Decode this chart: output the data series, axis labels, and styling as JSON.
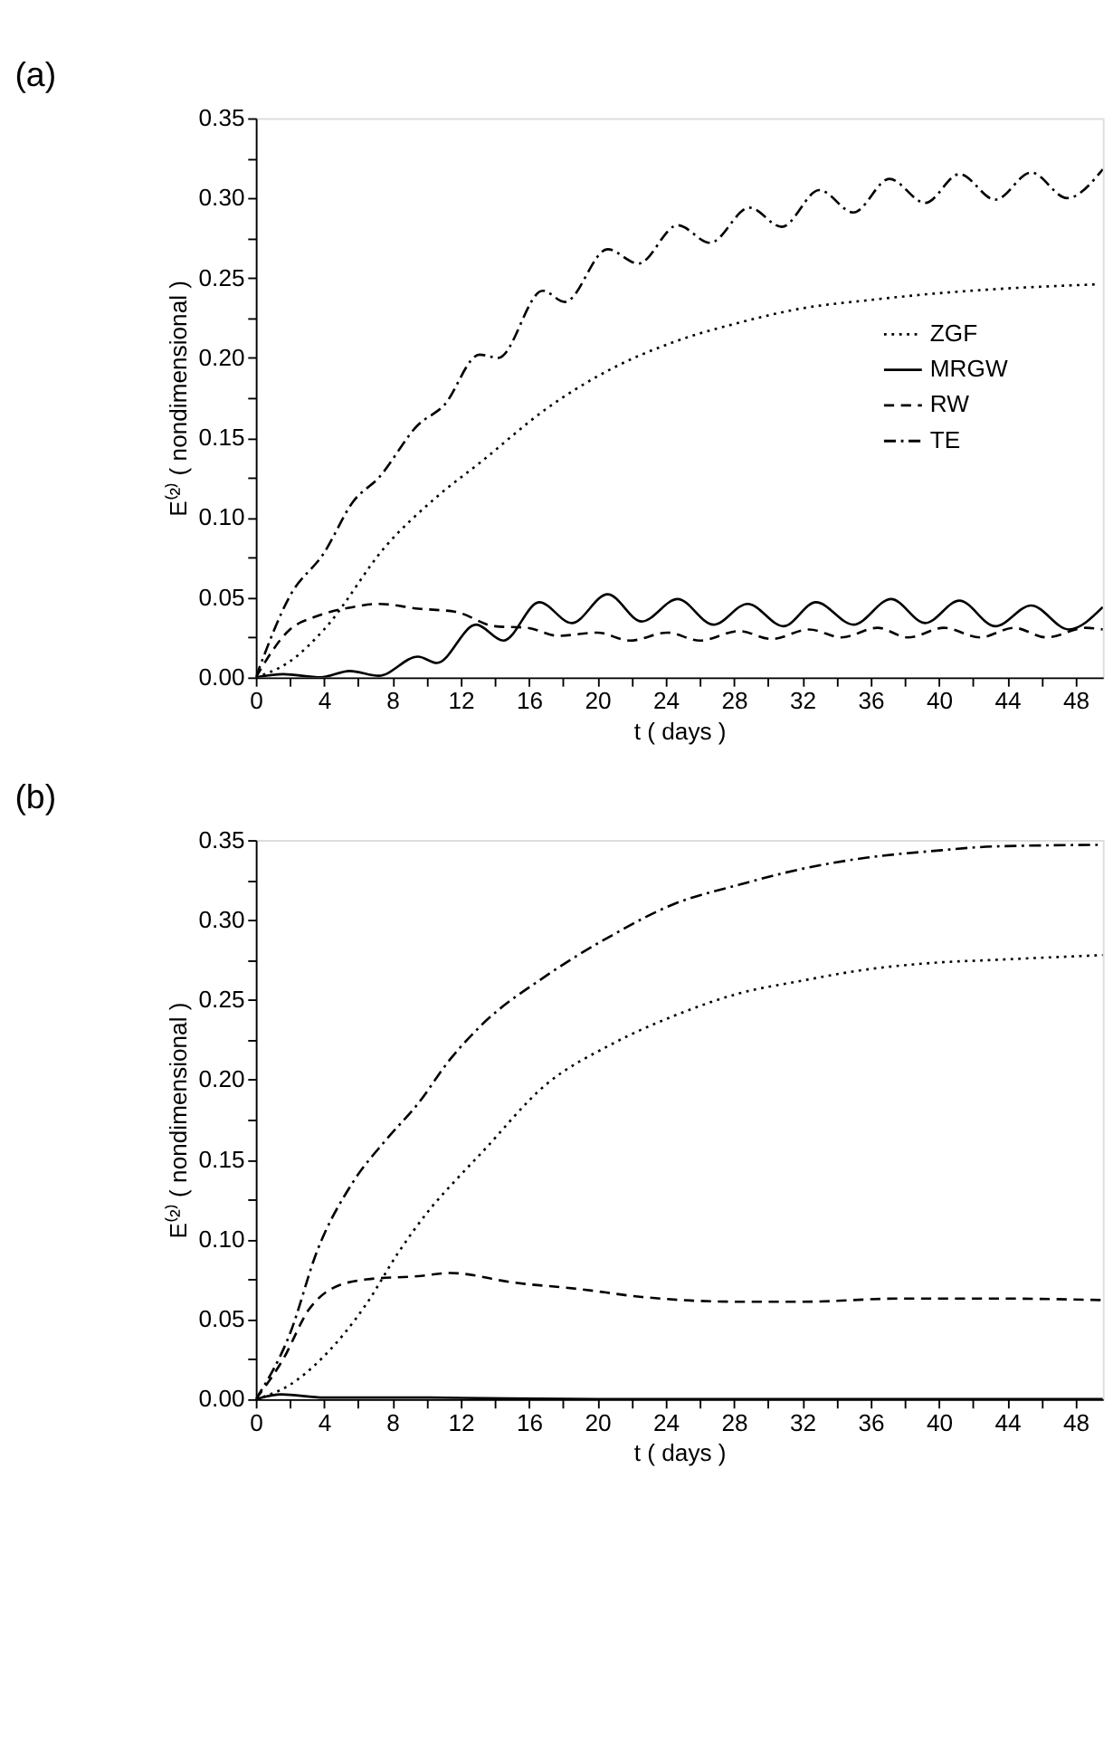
{
  "chart_data": [
    {
      "type": "line",
      "title": "(a)",
      "xlabel": "t ( days )",
      "ylabel": "E⁽²⁾ ( nondimensional )",
      "xlim": [
        0,
        49.6
      ],
      "ylim": [
        0,
        0.35
      ],
      "xticks": [
        0,
        {
          "value": 2,
          "label": null
        },
        4,
        {
          "value": 6,
          "label": null
        },
        8,
        {
          "value": 10,
          "label": null
        },
        12,
        {
          "value": 14,
          "label": null
        },
        16,
        {
          "value": 18,
          "label": null
        },
        20,
        {
          "value": 22,
          "label": null
        },
        24,
        {
          "value": 26,
          "label": null
        },
        28,
        {
          "value": 30,
          "label": null
        },
        32,
        {
          "value": 34,
          "label": null
        },
        36,
        {
          "value": 38,
          "label": null
        },
        40,
        {
          "value": 42,
          "label": null
        },
        44,
        {
          "value": 46,
          "label": null
        },
        48
      ],
      "yticks": [
        {
          "value": 0,
          "label": "0.00"
        },
        {
          "value": 0.025,
          "label": null
        },
        {
          "value": 0.05,
          "label": "0.05"
        },
        {
          "value": 0.075,
          "label": null
        },
        {
          "value": 0.1,
          "label": "0.10"
        },
        {
          "value": 0.125,
          "label": null
        },
        {
          "value": 0.15,
          "label": "0.15"
        },
        {
          "value": 0.175,
          "label": null
        },
        {
          "value": 0.2,
          "label": "0.20"
        },
        {
          "value": 0.225,
          "label": null
        },
        {
          "value": 0.25,
          "label": "0.25"
        },
        {
          "value": 0.275,
          "label": null
        },
        {
          "value": 0.3,
          "label": "0.30"
        },
        {
          "value": 0.325,
          "label": null
        },
        {
          "value": 0.35,
          "label": "0.35"
        }
      ],
      "grid": false,
      "legend": "right",
      "series": [
        {
          "name": "ZGF",
          "color": "#000000",
          "line_style": "dotted",
          "x": [
            0,
            2,
            4,
            7.6,
            10.6,
            13.2,
            17,
            20.8,
            24.5,
            28.3,
            32,
            35.8,
            39.5,
            43.3,
            49.3
          ],
          "values": [
            0,
            0.01,
            0.03,
            0.082,
            0.113,
            0.135,
            0.168,
            0.193,
            0.21,
            0.222,
            0.231,
            0.236,
            0.24,
            0.243,
            0.246
          ]
        },
        {
          "name": "MRGW",
          "color": "#000000",
          "line_style": "solid",
          "x": [
            0,
            1.6,
            3.8,
            5.5,
            7.2,
            9.5,
            10.6,
            12.9,
            14.5,
            16.6,
            18.5,
            20.6,
            22.6,
            24.7,
            26.8,
            28.8,
            30.9,
            32.8,
            35,
            37.2,
            39.2,
            41.2,
            43.3,
            45.4,
            47.6,
            49.6
          ],
          "values": [
            0,
            0.002,
            0,
            0.004,
            0.001,
            0.013,
            0.009,
            0.033,
            0.023,
            0.047,
            0.034,
            0.052,
            0.035,
            0.049,
            0.033,
            0.046,
            0.032,
            0.047,
            0.033,
            0.049,
            0.034,
            0.048,
            0.032,
            0.045,
            0.03,
            0.044
          ]
        },
        {
          "name": "RW",
          "color": "#000000",
          "line_style": "dashed",
          "x": [
            0,
            2,
            3.5,
            5.7,
            7.2,
            9.5,
            11.7,
            14,
            15.9,
            17.7,
            20,
            21.9,
            24.1,
            26,
            28.3,
            30.2,
            32.4,
            34.3,
            36.4,
            38.2,
            40.3,
            42.4,
            44.4,
            46.3,
            48.6,
            49.6
          ],
          "values": [
            0,
            0.03,
            0.038,
            0.044,
            0.046,
            0.043,
            0.041,
            0.032,
            0.031,
            0.026,
            0.028,
            0.023,
            0.028,
            0.023,
            0.029,
            0.024,
            0.03,
            0.025,
            0.031,
            0.025,
            0.031,
            0.025,
            0.031,
            0.025,
            0.031,
            0.03
          ]
        },
        {
          "name": "TE",
          "color": "#000000",
          "line_style": "dashdot",
          "x": [
            0,
            2,
            4,
            5.7,
            7.2,
            9.5,
            11,
            13.1,
            14.2,
            16.8,
            18.1,
            20.6,
            22.4,
            24.7,
            26.6,
            28.9,
            30.8,
            33,
            35,
            37.1,
            39.2,
            41.2,
            43.3,
            45.4,
            47.5,
            49.6
          ],
          "values": [
            0,
            0.051,
            0.078,
            0.11,
            0.125,
            0.158,
            0.17,
            0.202,
            0.2,
            0.242,
            0.235,
            0.268,
            0.259,
            0.283,
            0.272,
            0.294,
            0.282,
            0.305,
            0.291,
            0.312,
            0.297,
            0.315,
            0.299,
            0.316,
            0.3,
            0.318
          ]
        }
      ]
    },
    {
      "type": "line",
      "title": "(b)",
      "xlabel": "t ( days )",
      "ylabel": "E⁽²⁾ ( nondimensional )",
      "xlim": [
        0,
        49.6
      ],
      "ylim": [
        0,
        0.35
      ],
      "xticks": [
        0,
        {
          "value": 2,
          "label": null
        },
        4,
        {
          "value": 6,
          "label": null
        },
        8,
        {
          "value": 10,
          "label": null
        },
        12,
        {
          "value": 14,
          "label": null
        },
        16,
        {
          "value": 18,
          "label": null
        },
        20,
        {
          "value": 22,
          "label": null
        },
        24,
        {
          "value": 26,
          "label": null
        },
        28,
        {
          "value": 30,
          "label": null
        },
        32,
        {
          "value": 34,
          "label": null
        },
        36,
        {
          "value": 38,
          "label": null
        },
        40,
        {
          "value": 42,
          "label": null
        },
        44,
        {
          "value": 46,
          "label": null
        },
        48
      ],
      "yticks": [
        {
          "value": 0,
          "label": "0.00"
        },
        {
          "value": 0.025,
          "label": null
        },
        {
          "value": 0.05,
          "label": "0.05"
        },
        {
          "value": 0.075,
          "label": null
        },
        {
          "value": 0.1,
          "label": "0.10"
        },
        {
          "value": 0.125,
          "label": null
        },
        {
          "value": 0.15,
          "label": "0.15"
        },
        {
          "value": 0.175,
          "label": null
        },
        {
          "value": 0.2,
          "label": "0.20"
        },
        {
          "value": 0.225,
          "label": null
        },
        {
          "value": 0.25,
          "label": "0.25"
        },
        {
          "value": 0.275,
          "label": null
        },
        {
          "value": 0.3,
          "label": "0.30"
        },
        {
          "value": 0.325,
          "label": null
        },
        {
          "value": 0.35,
          "label": "0.35"
        }
      ],
      "grid": false,
      "legend": "right",
      "series": [
        {
          "name": "ZGF",
          "color": "#000000",
          "line_style": "dotted",
          "x": [
            0,
            2,
            4,
            6.5,
            8.3,
            10.2,
            11.7,
            13.2,
            17,
            20.8,
            24.5,
            28.3,
            32,
            35.8,
            39.5,
            43.3,
            49.6
          ],
          "values": [
            0,
            0.009,
            0.027,
            0.06,
            0.091,
            0.119,
            0.137,
            0.154,
            0.197,
            0.222,
            0.24,
            0.254,
            0.262,
            0.269,
            0.273,
            0.275,
            0.278
          ]
        },
        {
          "name": "MRGW",
          "color": "#000000",
          "line_style": "solid",
          "x": [
            0,
            1.5,
            4,
            10,
            20,
            49.6
          ],
          "values": [
            0,
            0.003,
            0.001,
            0.001,
            0,
            0
          ]
        },
        {
          "name": "RW",
          "color": "#000000",
          "line_style": "dashed",
          "x": [
            0,
            1.6,
            3.1,
            4.6,
            6.5,
            9.5,
            11.4,
            15.1,
            18.9,
            22.6,
            28.3,
            32,
            37.7,
            43.3,
            49.6
          ],
          "values": [
            0,
            0.025,
            0.056,
            0.07,
            0.075,
            0.077,
            0.079,
            0.073,
            0.069,
            0.064,
            0.061,
            0.061,
            0.063,
            0.063,
            0.062
          ]
        },
        {
          "name": "TE",
          "color": "#000000",
          "line_style": "dashdot",
          "x": [
            0,
            2,
            3.6,
            5.7,
            7.6,
            9.5,
            11.4,
            13.2,
            17,
            20.8,
            24.5,
            28.3,
            32,
            35.8,
            39.5,
            43.3,
            49.6
          ],
          "values": [
            0,
            0.041,
            0.093,
            0.136,
            0.162,
            0.185,
            0.213,
            0.234,
            0.265,
            0.29,
            0.31,
            0.322,
            0.332,
            0.339,
            0.343,
            0.346,
            0.347
          ]
        }
      ]
    }
  ]
}
